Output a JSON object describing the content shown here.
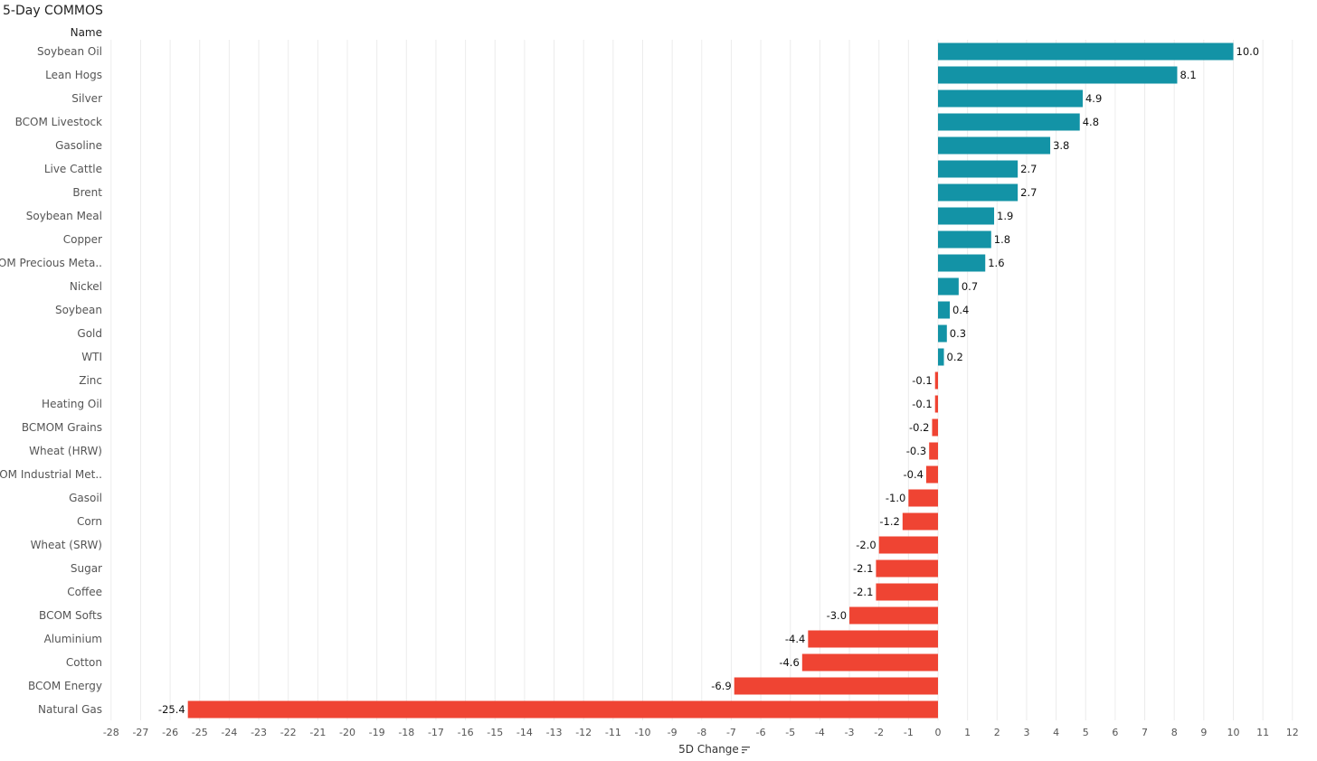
{
  "title": "5-Day COMMOS",
  "column_header": "Name",
  "colors": {
    "positive": "#1393a6",
    "negative": "#ef4433",
    "grid": "#ececec"
  },
  "sort_icon": "sort-descending-icon",
  "chart_data": {
    "type": "bar",
    "orientation": "horizontal",
    "title": "5-Day COMMOS",
    "xlabel": "5D Change",
    "ylabel": "Name",
    "xlim": [
      -28,
      12
    ],
    "grid": true,
    "categories": [
      "Soybean Oil",
      "Lean Hogs",
      "Silver",
      "BCOM Livestock",
      "Gasoline",
      "Live Cattle",
      "Brent",
      "Soybean Meal",
      "Copper",
      "BCOM Precious Meta..",
      "Nickel",
      "Soybean",
      "Gold",
      "WTI",
      "Zinc",
      "Heating Oil",
      "BCMOM Grains",
      "Wheat (HRW)",
      "BCOM Industrial Met..",
      "Gasoil",
      "Corn",
      "Wheat (SRW)",
      "Sugar",
      "Coffee",
      "BCOM Softs",
      "Aluminium",
      "Cotton",
      "BCOM Energy",
      "Natural Gas"
    ],
    "values": [
      10.0,
      8.1,
      4.9,
      4.8,
      3.8,
      2.7,
      2.7,
      1.9,
      1.8,
      1.6,
      0.7,
      0.4,
      0.3,
      0.2,
      -0.1,
      -0.1,
      -0.2,
      -0.3,
      -0.4,
      -1.0,
      -1.2,
      -2.0,
      -2.1,
      -2.1,
      -3.0,
      -4.4,
      -4.6,
      -6.9,
      -25.4
    ],
    "value_labels": [
      "10.0",
      "8.1",
      "4.9",
      "4.8",
      "3.8",
      "2.7",
      "2.7",
      "1.9",
      "1.8",
      "1.6",
      "0.7",
      "0.4",
      "0.3",
      "0.2",
      "-0.1",
      "-0.1",
      "-0.2",
      "-0.3",
      "-0.4",
      "-1.0",
      "-1.2",
      "-2.0",
      "-2.1",
      "-2.1",
      "-3.0",
      "-4.4",
      "-4.6",
      "-6.9",
      "-25.4"
    ],
    "x_ticks": [
      "-28",
      "-27",
      "-26",
      "-25",
      "-24",
      "-23",
      "-22",
      "-21",
      "-20",
      "-19",
      "-18",
      "-17",
      "-16",
      "-15",
      "-14",
      "-13",
      "-12",
      "-11",
      "-10",
      "-9",
      "-8",
      "-7",
      "-6",
      "-5",
      "-4",
      "-3",
      "-2",
      "-1",
      "0",
      "1",
      "2",
      "3",
      "4",
      "5",
      "6",
      "7",
      "8",
      "9",
      "10",
      "11",
      "12"
    ]
  }
}
